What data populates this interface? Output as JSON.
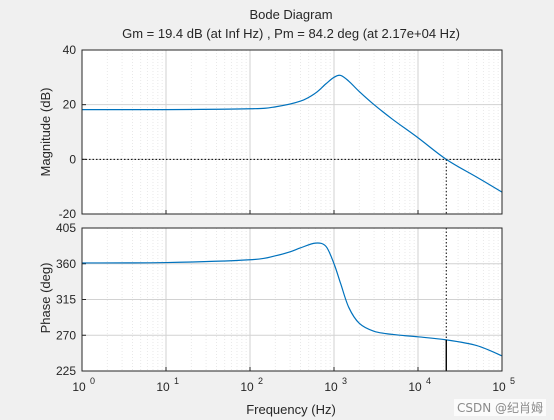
{
  "chart_data": {
    "type": "line",
    "title": "Bode Diagram",
    "subtitle": "Gm = 19.4 dB (at Inf Hz) ,  Pm = 84.2 deg (at 2.17e+04 Hz)",
    "xlabel": "Frequency  (Hz)",
    "xscale": "log",
    "xlim": [
      1,
      100000
    ],
    "x_ticks": [
      {
        "value": 1,
        "base": "10",
        "exp": "0"
      },
      {
        "value": 10,
        "base": "10",
        "exp": "1"
      },
      {
        "value": 100,
        "base": "10",
        "exp": "2"
      },
      {
        "value": 1000,
        "base": "10",
        "exp": "3"
      },
      {
        "value": 10000,
        "base": "10",
        "exp": "4"
      },
      {
        "value": 100000,
        "base": "10",
        "exp": "5"
      }
    ],
    "grid": true,
    "line_color": "#0072bd",
    "marker_color": "#000000",
    "panels": [
      {
        "id": "magnitude",
        "ylabel": "Magnitude (dB)",
        "ylim": [
          -20,
          40
        ],
        "yticks": [
          -20,
          0,
          20,
          40
        ],
        "ytick_labels": [
          "-20",
          "0",
          "20",
          "40"
        ],
        "reference_line": 0,
        "series": [
          {
            "x": [
              1,
              10,
              100,
              200,
              400,
              600,
              800,
              1000,
              1200,
              1500,
              2000,
              3000,
              5000,
              10000,
              21700,
              50000,
              100000
            ],
            "values": [
              18.2,
              18.2,
              18.5,
              19.2,
              21.3,
              24.2,
              27.6,
              30.0,
              30.7,
              28.6,
              24.8,
              20.0,
              14.6,
              7.9,
              0.0,
              -6.5,
              -12.0
            ]
          }
        ]
      },
      {
        "id": "phase",
        "ylabel": "Phase (deg)",
        "ylim": [
          225,
          405
        ],
        "yticks": [
          225,
          270,
          315,
          360,
          405
        ],
        "ytick_labels": [
          "225",
          "270",
          "315",
          "360",
          "405"
        ],
        "series": [
          {
            "x": [
              1,
              10,
              100,
              200,
              300,
              400,
              600,
              800,
              1000,
              1200,
              1500,
              2000,
              3000,
              5000,
              10000,
              21700,
              50000,
              100000
            ],
            "values": [
              361,
              361.5,
              365,
              370,
              375,
              380,
              386,
              382,
              360,
              335,
              305,
              285,
              275,
              271,
              268,
              264.2,
              257,
              244
            ]
          }
        ]
      }
    ],
    "margins": {
      "gain_margin_db": 19.4,
      "phase_margin_deg": 84.2,
      "crossover_hz": 21700
    }
  },
  "watermark": "CSDN @纪肖姆"
}
